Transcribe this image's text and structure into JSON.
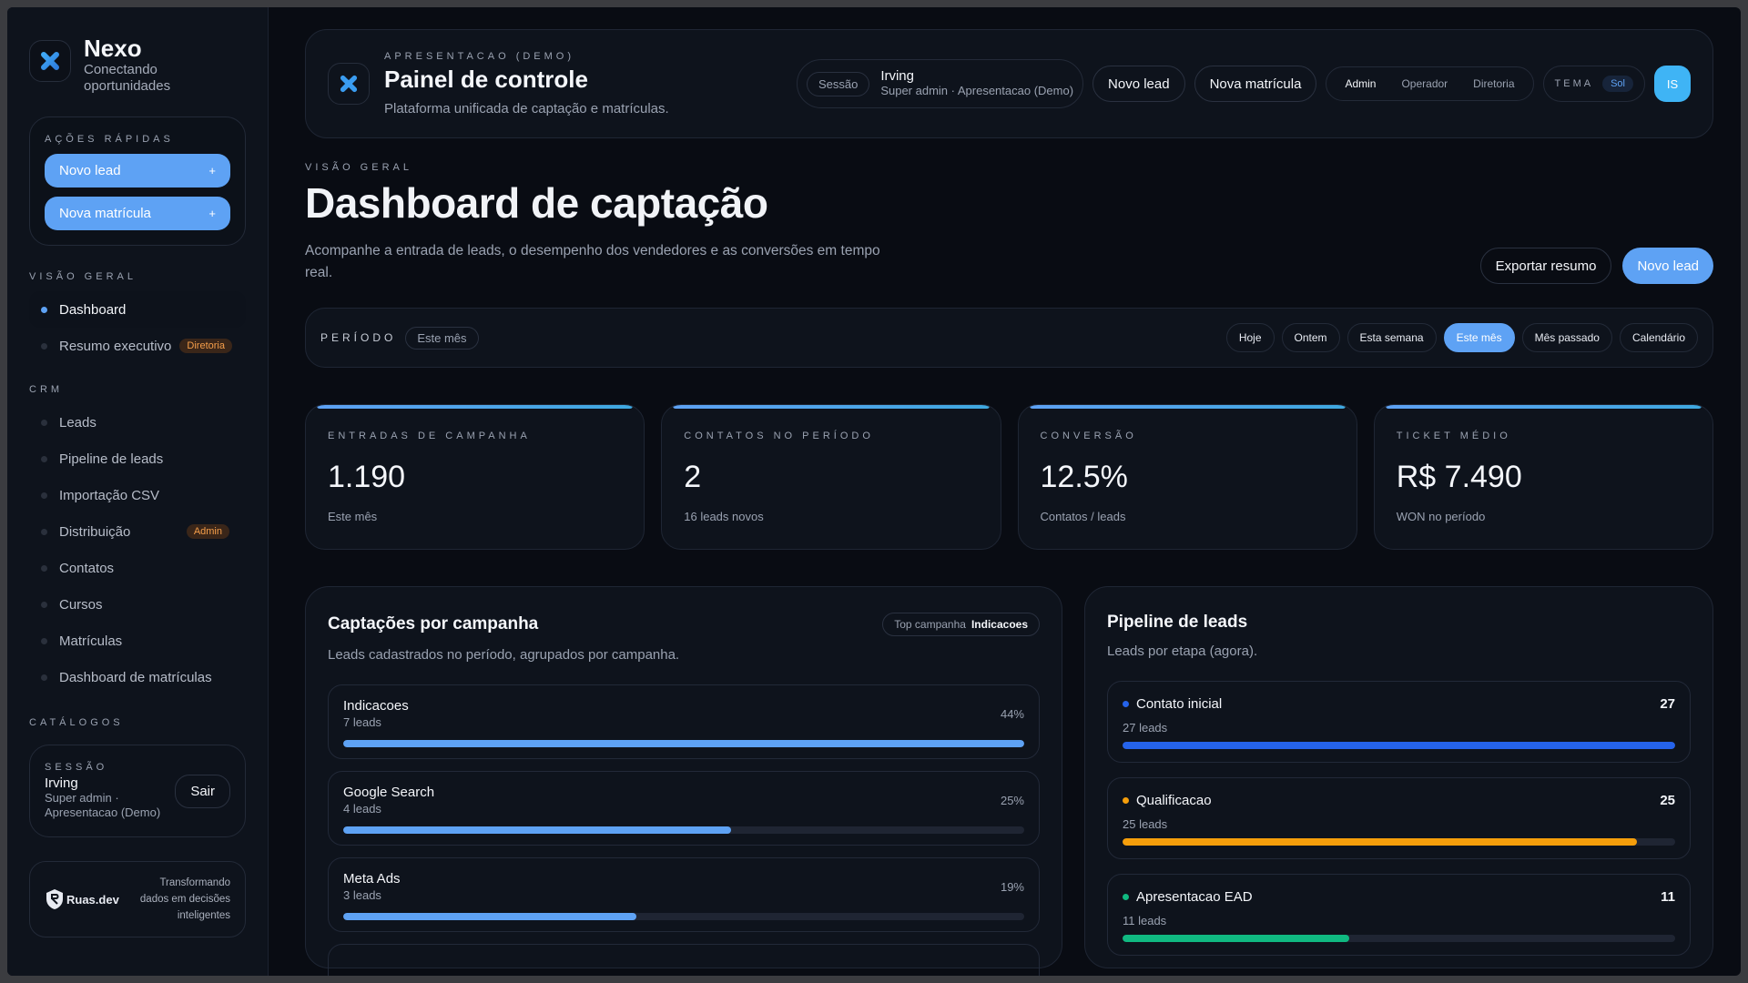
{
  "sidebar": {
    "brand": {
      "name": "Nexo",
      "tagline": "Conectando oportunidades"
    },
    "quick_actions": {
      "title": "AÇÕES RÁPIDAS",
      "items": [
        {
          "label": "Novo lead",
          "icon": "+"
        },
        {
          "label": "Nova matrícula",
          "icon": "+"
        }
      ]
    },
    "sections": [
      {
        "title": "VISÃO GERAL",
        "items": [
          {
            "label": "Dashboard",
            "active": true
          },
          {
            "label": "Resumo executivo",
            "badge": "Diretoria"
          }
        ]
      },
      {
        "title": "CRM",
        "items": [
          {
            "label": "Leads"
          },
          {
            "label": "Pipeline de leads"
          },
          {
            "label": "Importação CSV"
          },
          {
            "label": "Distribuição",
            "badge": "Admin"
          },
          {
            "label": "Contatos"
          },
          {
            "label": "Cursos"
          },
          {
            "label": "Matrículas"
          },
          {
            "label": "Dashboard de matrículas"
          }
        ]
      },
      {
        "title": "CATÁLOGOS",
        "items": []
      }
    ],
    "session": {
      "title": "SESSÃO",
      "name": "Irving",
      "role": "Super admin ·",
      "org": "Apresentacao (Demo)",
      "logout_label": "Sair"
    },
    "footer": {
      "logo_text": "Ruas.dev",
      "tagline_1": "Transformando",
      "tagline_2": "dados em decisões",
      "tagline_3": "inteligentes"
    }
  },
  "topbar": {
    "eyebrow": "APRESENTACAO (DEMO)",
    "title": "Painel de controle",
    "subtitle": "Plataforma unificada de captação e matrículas.",
    "session_tag": "Sessão",
    "user_name": "Irving",
    "user_role": "Super admin · Apresentacao (Demo)",
    "new_lead": "Novo lead",
    "new_enrollment": "Nova matrícula",
    "roles": [
      "Admin",
      "Operador",
      "Diretoria"
    ],
    "active_role": "Admin",
    "theme_label": "TEMA",
    "theme_value": "Sol",
    "avatar_initials": "IS"
  },
  "hero": {
    "eyebrow": "VISÃO GERAL",
    "title": "Dashboard de captação",
    "description": "Acompanhe a entrada de leads, o desempenho dos vendedores e as conversões em tempo real.",
    "export_label": "Exportar resumo",
    "new_lead_label": "Novo lead"
  },
  "period": {
    "label": "PERÍODO",
    "current": "Este mês",
    "options": [
      "Hoje",
      "Ontem",
      "Esta semana",
      "Este mês",
      "Mês passado",
      "Calendário"
    ],
    "active": "Este mês"
  },
  "kpis": [
    {
      "label": "ENTRADAS DE CAMPANHA",
      "value": "1.190",
      "sub": "Este mês"
    },
    {
      "label": "CONTATOS NO PERÍODO",
      "value": "2",
      "sub": "16 leads novos"
    },
    {
      "label": "CONVERSÃO",
      "value": "12.5%",
      "sub": "Contatos / leads"
    },
    {
      "label": "TICKET MÉDIO",
      "value": "R$ 7.490",
      "sub": "WON no período"
    }
  ],
  "campaigns": {
    "title": "Captações por campanha",
    "subtitle": "Leads cadastrados no período, agrupados por campanha.",
    "top_label": "Top campanha",
    "top_value": "Indicacoes",
    "bar_color": "#5ea2f4",
    "items": [
      {
        "name": "Indicacoes",
        "leads": "7 leads",
        "pct": "44%",
        "fill": 100
      },
      {
        "name": "Google Search",
        "leads": "4 leads",
        "pct": "25%",
        "fill": 57
      },
      {
        "name": "Meta Ads",
        "leads": "3 leads",
        "pct": "19%",
        "fill": 43
      }
    ]
  },
  "pipeline": {
    "title": "Pipeline de leads",
    "subtitle": "Leads por etapa (agora).",
    "items": [
      {
        "name": "Contato inicial",
        "count": "27",
        "leads": "27 leads",
        "color": "#2563eb",
        "fill": 100
      },
      {
        "name": "Qualificacao",
        "count": "25",
        "leads": "25 leads",
        "color": "#f59e0b",
        "fill": 93
      },
      {
        "name": "Apresentacao EAD",
        "count": "11",
        "leads": "11 leads",
        "color": "#10b981",
        "fill": 41
      }
    ]
  }
}
